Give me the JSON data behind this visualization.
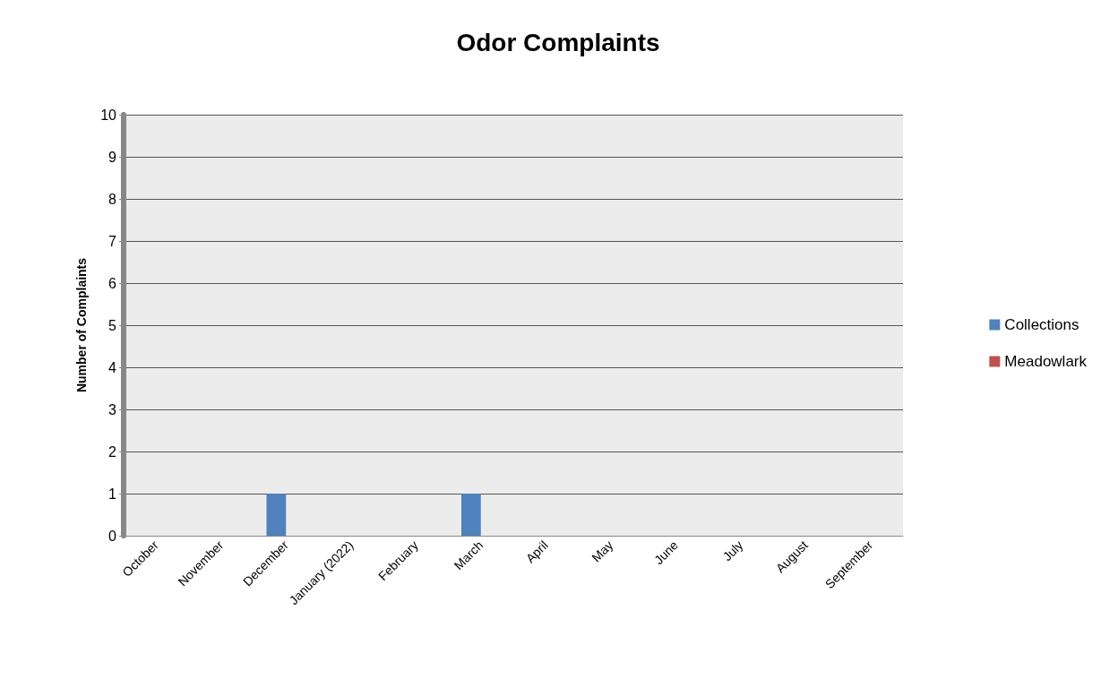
{
  "chart_data": {
    "type": "bar",
    "title": "Odor Complaints",
    "ylabel": "Number of Complaints",
    "categories": [
      "October",
      "November",
      "December",
      "January (2022)",
      "February",
      "March",
      "April",
      "May",
      "June",
      "July",
      "August",
      "September"
    ],
    "series": [
      {
        "name": "Collections",
        "color": "#4f81bd",
        "values": [
          0,
          0,
          1,
          0,
          0,
          1,
          0,
          0,
          0,
          0,
          0,
          0
        ]
      },
      {
        "name": "Meadowlark",
        "color": "#c0504d",
        "values": [
          0,
          0,
          0,
          0,
          0,
          0,
          0,
          0,
          0,
          0,
          0,
          0
        ]
      }
    ],
    "ylim": [
      0,
      10
    ],
    "yticks": [
      0,
      1,
      2,
      3,
      4,
      5,
      6,
      7,
      8,
      9,
      10
    ],
    "grid": "y",
    "legend": "right"
  }
}
